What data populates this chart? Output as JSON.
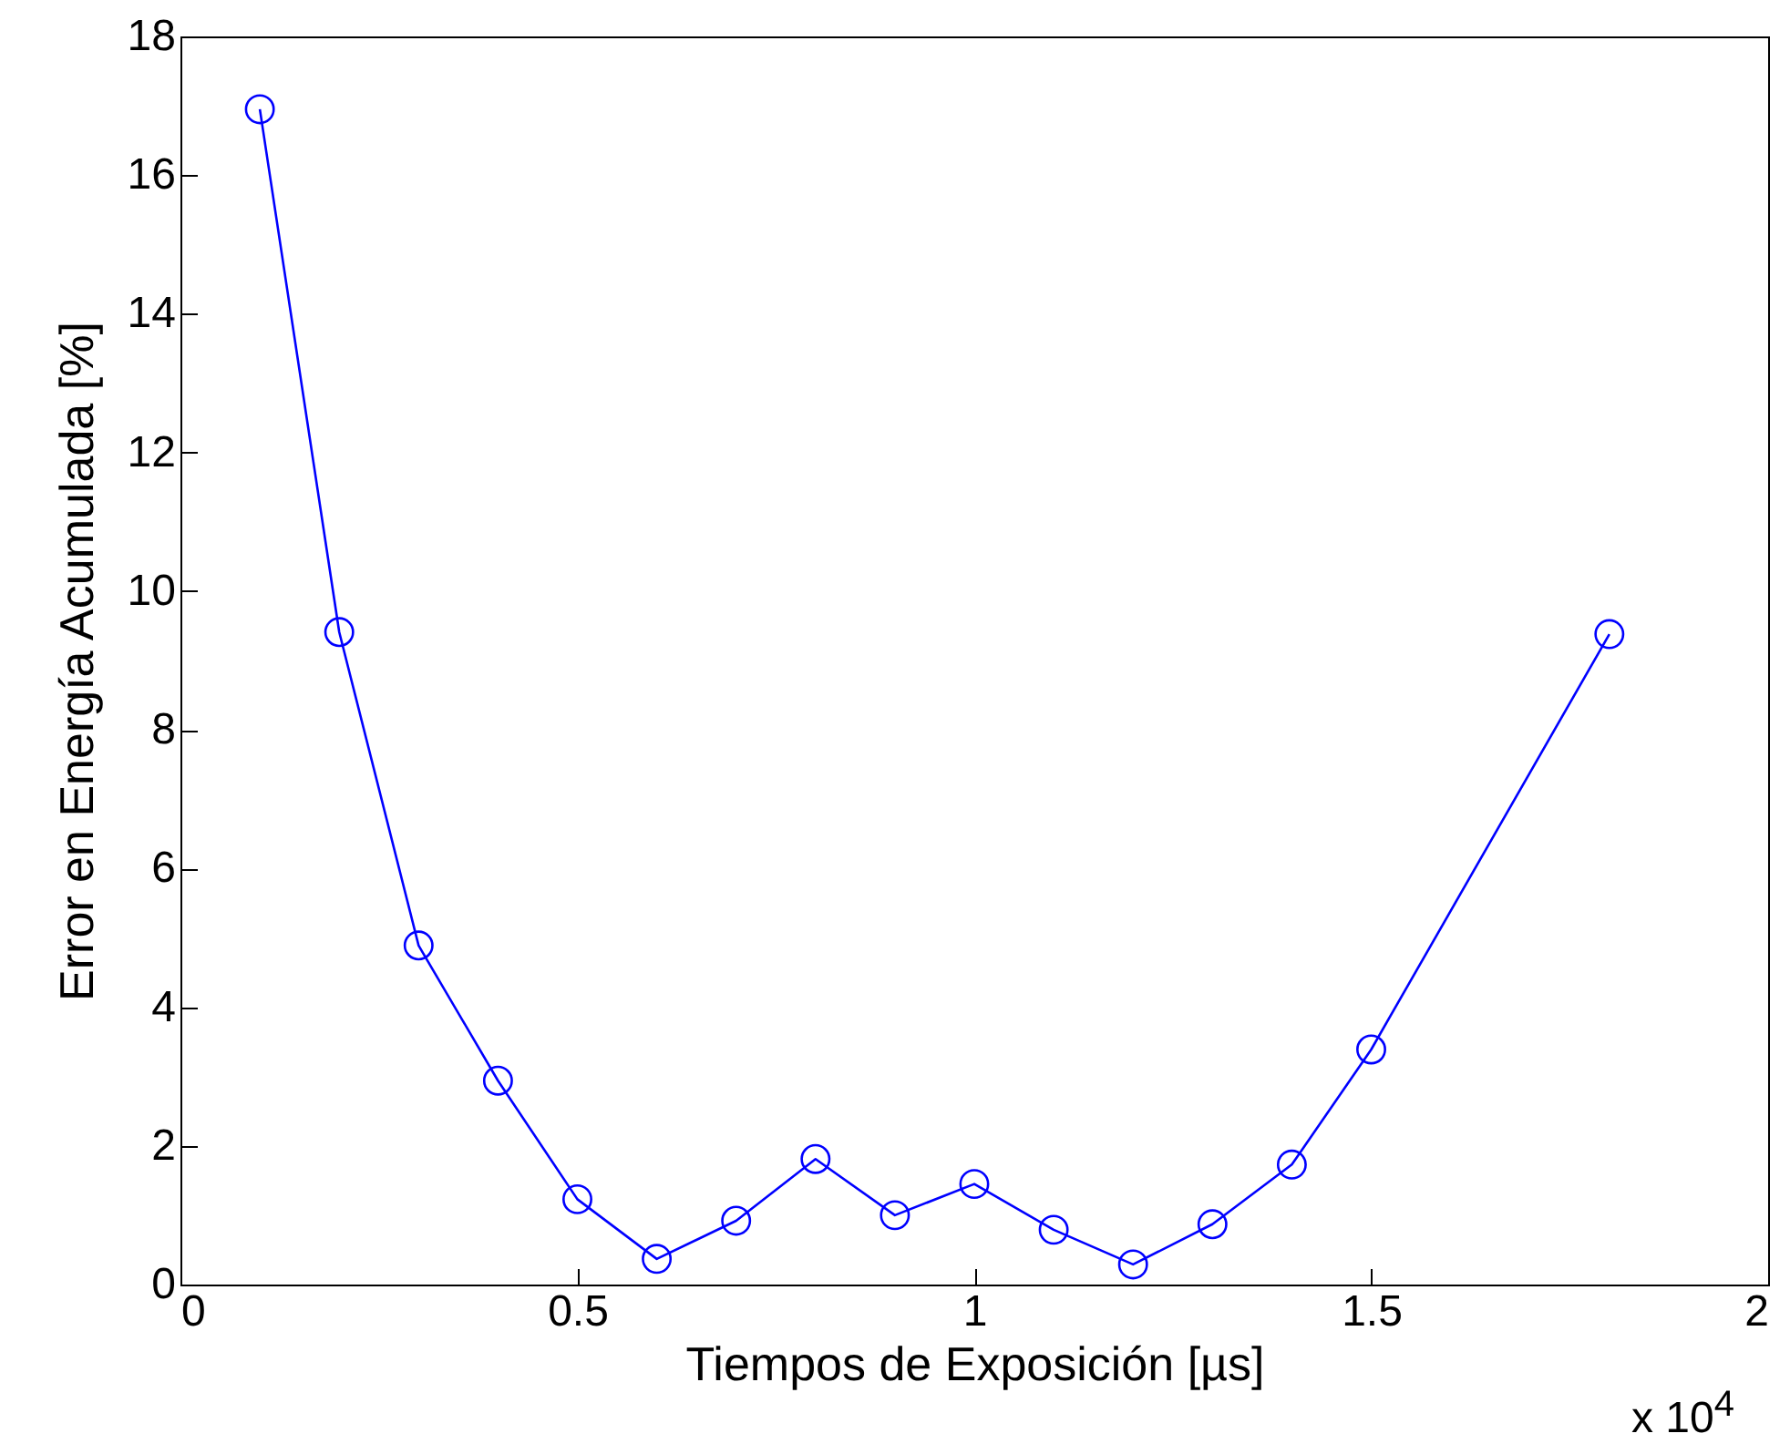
{
  "chart_data": {
    "type": "line",
    "xlabel": "Tiempos de Exposición [µs]",
    "ylabel": "Error en Energía Acumulada [%]",
    "x": [
      0.1,
      0.2,
      0.3,
      0.4,
      0.5,
      0.6,
      0.7,
      0.8,
      0.9,
      1.0,
      1.1,
      1.2,
      1.3,
      1.4,
      1.5,
      1.8
    ],
    "series": [
      {
        "color": "#0000ff",
        "values": [
          16.95,
          9.41,
          4.89,
          2.94,
          1.23,
          0.37,
          0.92,
          1.81,
          1.0,
          1.45,
          0.79,
          0.29,
          0.87,
          1.73,
          3.39,
          9.38
        ]
      }
    ],
    "xlim": [
      0,
      2
    ],
    "xticks": [
      0,
      0.5,
      1,
      1.5,
      2
    ],
    "ylim": [
      0,
      18
    ],
    "yticks": [
      0,
      2,
      4,
      6,
      8,
      10,
      12,
      14,
      16,
      18
    ],
    "annotations": [
      "x 10$^{4}$"
    ],
    "marker": "circle",
    "line_style": "solid",
    "grid": false
  }
}
